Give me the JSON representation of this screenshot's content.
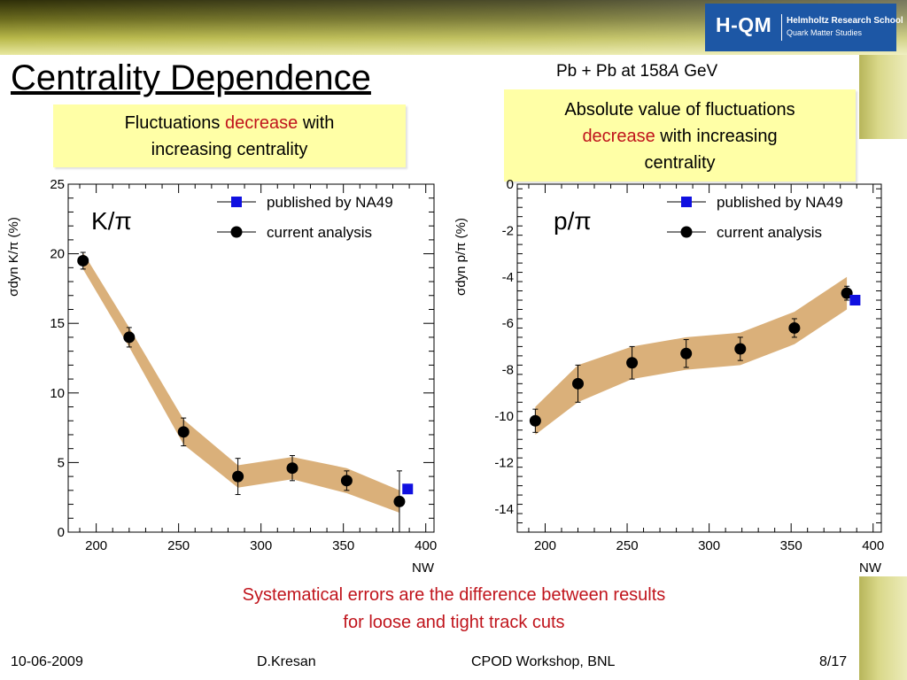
{
  "slide": {
    "title": "Centrality Dependence",
    "subtitle_a": "Pb + Pb at 158",
    "subtitle_b": "A",
    "subtitle_c": " GeV",
    "logo": {
      "main": "H-QM",
      "line1": "Helmholtz Research School",
      "line2": "Quark Matter Studies"
    },
    "box_left": {
      "p1": "Fluctuations ",
      "p2": "decrease",
      "p3": " with",
      "p4": "increasing centrality"
    },
    "box_right": {
      "p1": "Absolute value of fluctuations",
      "p2": "decrease",
      "p3": " with increasing",
      "p4": "centrality"
    },
    "note_line1": "Systematical errors are the difference between results",
    "note_line2": "for loose and tight track cuts",
    "footer": {
      "date": "10-06-2009",
      "author": "D.Kresan",
      "event": "CPOD Workshop, BNL",
      "page": "8/17"
    }
  },
  "chart_data": [
    {
      "type": "scatter",
      "label": "K/π",
      "ylabel": "σdyn K/π (%)",
      "xlabel": "NW",
      "xlim": [
        183,
        405
      ],
      "ylim": [
        0,
        25
      ],
      "xticks": [
        200,
        250,
        300,
        350,
        400
      ],
      "yticks": [
        0,
        5,
        10,
        15,
        20,
        25
      ],
      "legend_position": "top-right",
      "band_color": "#d6a76c",
      "series": [
        {
          "name": "current analysis",
          "marker": "circle",
          "color": "#000000",
          "x": [
            192,
            220,
            253,
            286,
            319,
            352,
            384
          ],
          "y": [
            19.5,
            14.0,
            7.2,
            4.0,
            4.6,
            3.7,
            2.2
          ],
          "err": [
            0.6,
            0.7,
            1.0,
            1.3,
            0.9,
            0.7,
            2.2
          ],
          "band_low": [
            18.9,
            13.3,
            6.3,
            3.2,
            3.8,
            2.8,
            1.4
          ],
          "band_high": [
            20.1,
            14.7,
            8.1,
            4.8,
            5.4,
            4.6,
            3.0
          ]
        },
        {
          "name": "published by NA49",
          "marker": "square",
          "color": "#1010e0",
          "x": [
            389
          ],
          "y": [
            3.1
          ]
        }
      ]
    },
    {
      "type": "scatter",
      "label": "p/π",
      "ylabel": "σdyn p/π (%)",
      "xlabel": "NW",
      "xlim": [
        183,
        405
      ],
      "ylim": [
        -15,
        0
      ],
      "xticks": [
        200,
        250,
        300,
        350,
        400
      ],
      "yticks": [
        -14,
        -12,
        -10,
        -8,
        -6,
        -4,
        -2,
        0
      ],
      "legend_position": "top-right",
      "band_color": "#d6a76c",
      "series": [
        {
          "name": "current analysis",
          "marker": "circle",
          "color": "#000000",
          "x": [
            194,
            220,
            253,
            286,
            319,
            352,
            384
          ],
          "y": [
            -10.2,
            -8.6,
            -7.7,
            -7.3,
            -7.1,
            -6.2,
            -4.7
          ],
          "err": [
            0.5,
            0.8,
            0.7,
            0.6,
            0.5,
            0.4,
            0.3
          ],
          "band_low": [
            -10.8,
            -9.4,
            -8.4,
            -8.0,
            -7.8,
            -6.9,
            -5.4
          ],
          "band_high": [
            -9.6,
            -7.8,
            -7.0,
            -6.6,
            -6.4,
            -5.5,
            -4.0
          ]
        },
        {
          "name": "published by NA49",
          "marker": "square",
          "color": "#1010e0",
          "x": [
            389
          ],
          "y": [
            -5.0
          ]
        }
      ]
    }
  ]
}
